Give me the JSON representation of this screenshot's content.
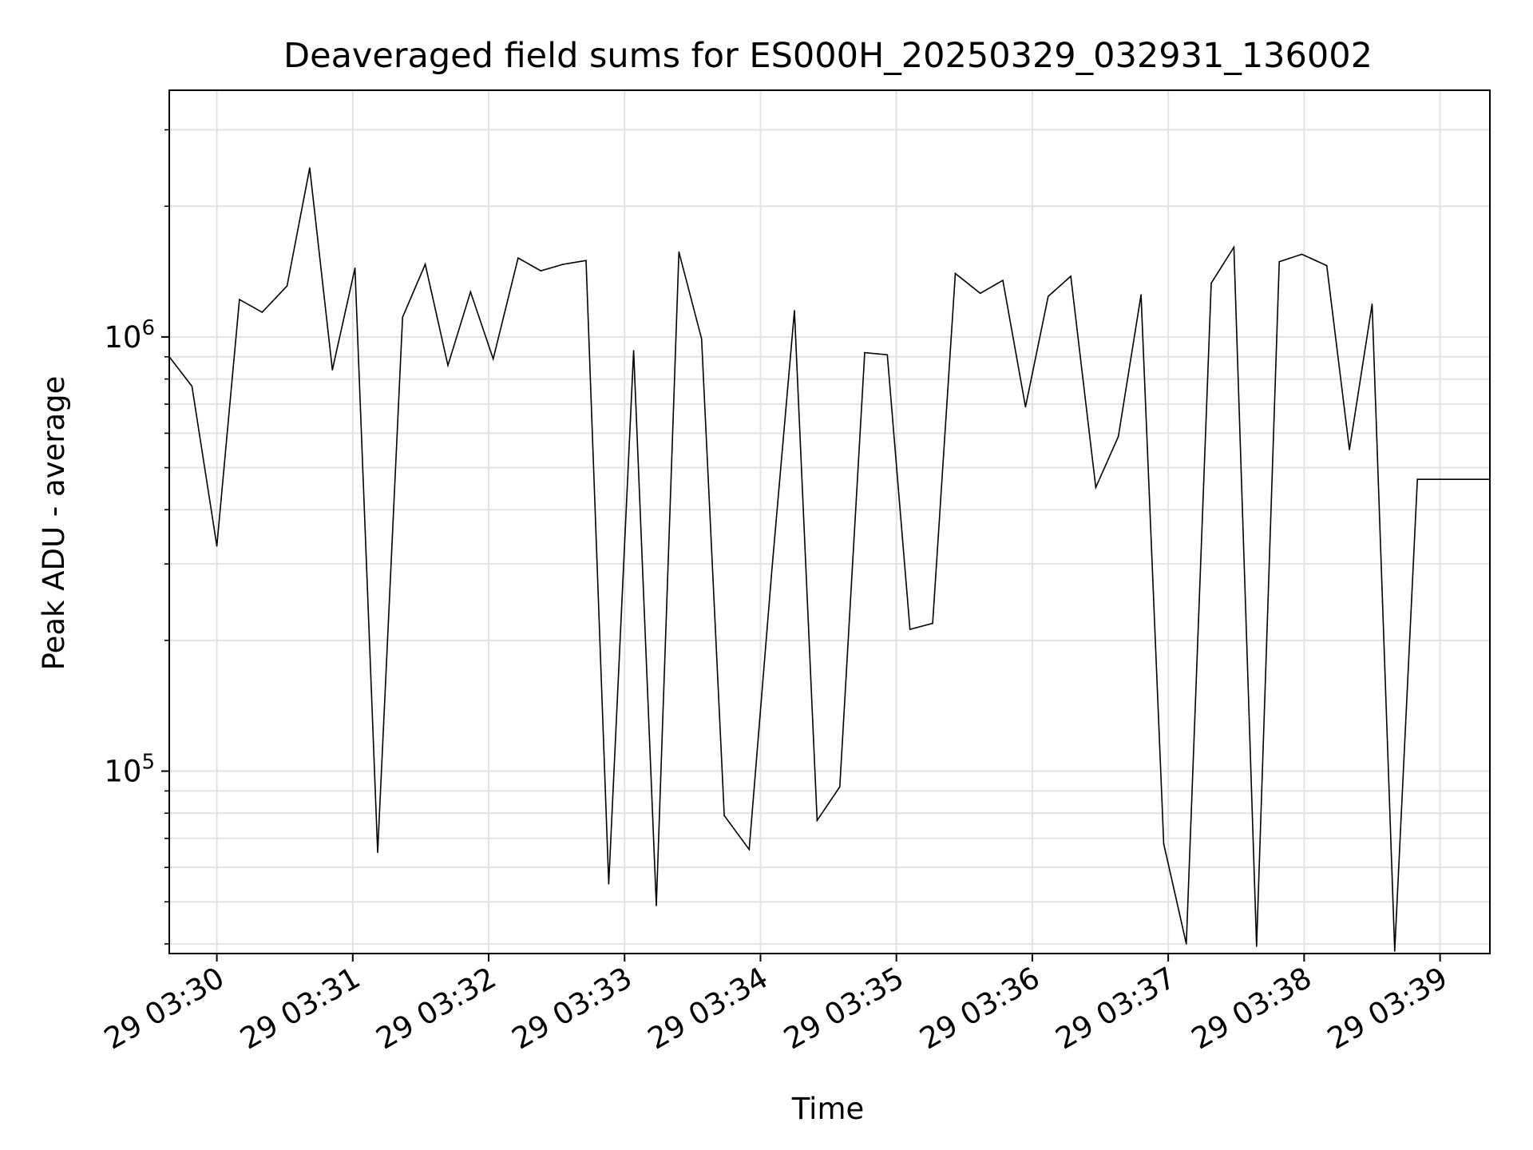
{
  "chart_data": {
    "type": "line",
    "title": "Deaveraged field sums for ES000H_20250329_032931_136002",
    "xlabel": "Time",
    "ylabel": "Peak ADU - average",
    "y_scale": "log",
    "ylim": [
      38000,
      3700000
    ],
    "xlim": [
      "29 03:29:39",
      "29 03:39:22"
    ],
    "grid": true,
    "x_ticks": [
      {
        "t": "29 03:30:00",
        "label": "29 03:30"
      },
      {
        "t": "29 03:31:00",
        "label": "29 03:31"
      },
      {
        "t": "29 03:32:00",
        "label": "29 03:32"
      },
      {
        "t": "29 03:33:00",
        "label": "29 03:33"
      },
      {
        "t": "29 03:34:00",
        "label": "29 03:34"
      },
      {
        "t": "29 03:35:00",
        "label": "29 03:35"
      },
      {
        "t": "29 03:36:00",
        "label": "29 03:36"
      },
      {
        "t": "29 03:37:00",
        "label": "29 03:37"
      },
      {
        "t": "29 03:38:00",
        "label": "29 03:38"
      },
      {
        "t": "29 03:39:00",
        "label": "29 03:39"
      }
    ],
    "y_major_ticks": [
      {
        "value": 100000,
        "base": "10",
        "exp": "5"
      },
      {
        "value": 1000000,
        "base": "10",
        "exp": "6"
      }
    ],
    "series": [
      {
        "color": "#000000",
        "x": [
          "29 03:29:39",
          "29 03:29:49",
          "29 03:30:00",
          "29 03:30:10",
          "29 03:30:20",
          "29 03:30:31",
          "29 03:30:41",
          "29 03:30:51",
          "29 03:31:01",
          "29 03:31:11",
          "29 03:31:22",
          "29 03:31:32",
          "29 03:31:42",
          "29 03:31:52",
          "29 03:32:02",
          "29 03:32:13",
          "29 03:32:23",
          "29 03:32:33",
          "29 03:32:43",
          "29 03:32:53",
          "29 03:33:04",
          "29 03:33:14",
          "29 03:33:24",
          "29 03:33:34",
          "29 03:33:44",
          "29 03:33:55",
          "29 03:34:05",
          "29 03:34:15",
          "29 03:34:25",
          "29 03:34:35",
          "29 03:34:46",
          "29 03:34:56",
          "29 03:35:06",
          "29 03:35:16",
          "29 03:35:26",
          "29 03:35:37",
          "29 03:35:47",
          "29 03:35:57",
          "29 03:36:07",
          "29 03:36:17",
          "29 03:36:28",
          "29 03:36:38",
          "29 03:36:48",
          "29 03:36:58",
          "29 03:37:08",
          "29 03:37:19",
          "29 03:37:29",
          "29 03:37:39",
          "29 03:37:49",
          "29 03:37:59",
          "29 03:38:10",
          "29 03:38:20",
          "29 03:38:30",
          "29 03:38:40",
          "29 03:38:50",
          "29 03:39:00",
          "29 03:39:22"
        ],
        "values": [
          900000,
          770000,
          330000,
          1220000,
          1140000,
          1310000,
          2450000,
          840000,
          1440000,
          65000,
          1110000,
          1470000,
          860000,
          1270000,
          890000,
          1520000,
          1420000,
          1470000,
          1500000,
          55000,
          930000,
          49000,
          1570000,
          990000,
          79000,
          66000,
          290000,
          1150000,
          77000,
          92000,
          920000,
          910000,
          212000,
          219000,
          1400000,
          1260000,
          1350000,
          690000,
          1240000,
          1380000,
          450000,
          590000,
          1250000,
          68000,
          40000,
          1330000,
          1610000,
          39500,
          1490000,
          1550000,
          1460000,
          550000,
          1190000,
          38500,
          470000,
          470000,
          470000
        ]
      }
    ]
  }
}
